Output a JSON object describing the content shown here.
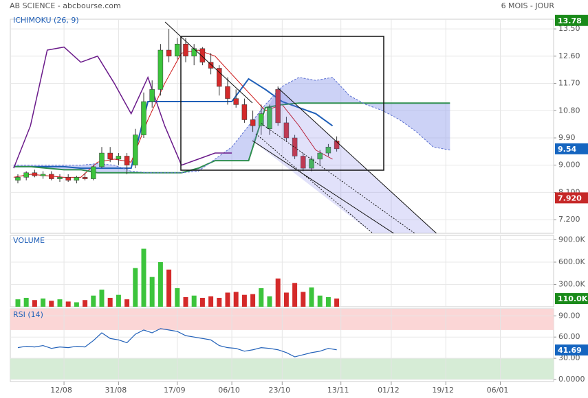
{
  "header": {
    "title": "AB SCIENCE - abcbourse.com",
    "period": "6 MOIS - JOUR"
  },
  "chart_data": [
    {
      "type": "candlestick",
      "title": "ICHIMOKU (26, 9)",
      "x": [
        1,
        3,
        5,
        7,
        9,
        11,
        13,
        15,
        17,
        19,
        21,
        23,
        25,
        27,
        29,
        31,
        33,
        35,
        37,
        39,
        41,
        43,
        45,
        47,
        49,
        51,
        53,
        55,
        57,
        59,
        61,
        63,
        65,
        67,
        69,
        71,
        73,
        75,
        77
      ],
      "open": [
        8.5,
        8.6,
        8.75,
        8.65,
        8.7,
        8.55,
        8.6,
        8.5,
        8.6,
        8.55,
        8.95,
        9.4,
        9.2,
        9.3,
        9.0,
        10.0,
        11.1,
        11.5,
        12.8,
        12.6,
        13.0,
        12.6,
        12.85,
        12.4,
        12.2,
        11.6,
        11.2,
        11.0,
        10.5,
        10.3,
        10.2,
        11.5,
        10.4,
        9.9,
        9.3,
        8.9,
        9.2,
        9.4,
        9.8
      ],
      "high": [
        8.7,
        8.8,
        8.85,
        8.8,
        8.8,
        8.7,
        8.7,
        8.65,
        8.75,
        9.0,
        9.6,
        9.6,
        9.4,
        9.4,
        10.2,
        11.4,
        11.8,
        13.0,
        13.5,
        13.2,
        13.2,
        13.0,
        12.9,
        12.7,
        12.3,
        11.9,
        11.5,
        11.2,
        10.8,
        11.0,
        11.0,
        11.6,
        10.6,
        10.0,
        9.4,
        9.3,
        9.5,
        9.7,
        9.95
      ],
      "low": [
        8.4,
        8.5,
        8.6,
        8.55,
        8.5,
        8.45,
        8.45,
        8.4,
        8.5,
        8.5,
        8.9,
        9.1,
        9.0,
        8.7,
        8.9,
        9.9,
        10.9,
        11.3,
        12.4,
        12.5,
        12.4,
        12.3,
        12.3,
        12.0,
        11.3,
        11.0,
        10.9,
        10.4,
        10.1,
        10.0,
        10.0,
        10.3,
        9.8,
        9.2,
        8.8,
        8.8,
        9.0,
        9.3,
        9.45
      ],
      "close": [
        8.6,
        8.75,
        8.65,
        8.7,
        8.55,
        8.6,
        8.5,
        8.6,
        8.55,
        8.95,
        9.4,
        9.2,
        9.3,
        9.0,
        10.0,
        11.1,
        11.5,
        12.8,
        12.6,
        13.0,
        12.6,
        12.85,
        12.4,
        12.2,
        11.6,
        11.2,
        11.0,
        10.5,
        10.3,
        10.7,
        10.9,
        10.4,
        9.9,
        9.3,
        8.9,
        9.2,
        9.4,
        9.6,
        9.54
      ],
      "up_color": "#3cc43c",
      "down_color": "#d42a2a",
      "overlays": [
        {
          "color": "#cc1111",
          "width": 1,
          "x": [
            0,
            4,
            8,
            12,
            16,
            20,
            24,
            28,
            32,
            36,
            40,
            44,
            48,
            52,
            56,
            60,
            64,
            68,
            72,
            76
          ],
          "values": [
            8.6,
            8.7,
            8.65,
            8.6,
            8.6,
            9.1,
            9.2,
            9.1,
            10.5,
            11.7,
            12.7,
            12.8,
            12.6,
            12.0,
            11.4,
            10.8,
            11.0,
            10.3,
            9.5,
            9.2
          ]
        },
        {
          "color": "#1f5fb8",
          "width": 2,
          "x": [
            0,
            4,
            8,
            12,
            16,
            20,
            24,
            28,
            32,
            36,
            40,
            44,
            48,
            52,
            56,
            60,
            64,
            68,
            72,
            76
          ],
          "values": [
            8.95,
            8.95,
            8.95,
            8.95,
            8.9,
            8.9,
            8.9,
            8.9,
            11.1,
            11.1,
            11.1,
            11.1,
            11.1,
            11.1,
            11.85,
            11.5,
            11.1,
            10.9,
            10.7,
            10.3
          ]
        },
        {
          "color": "#2f8f4f",
          "width": 2,
          "x": [
            0,
            4,
            8,
            12,
            16,
            20,
            24,
            28,
            32,
            36,
            40,
            44,
            48,
            52,
            56,
            60,
            64,
            68,
            72,
            76,
            80,
            84,
            88,
            92,
            96,
            100,
            104
          ],
          "values": [
            8.95,
            8.95,
            8.9,
            8.85,
            8.85,
            8.75,
            8.75,
            8.75,
            8.75,
            8.75,
            8.75,
            8.9,
            9.15,
            9.15,
            9.15,
            10.9,
            11.0,
            11.05,
            11.05,
            11.05,
            11.05,
            11.05,
            11.05,
            11.05,
            11.05,
            11.05,
            11.05
          ]
        },
        {
          "color": "#5a6fd0",
          "width": 1,
          "dash": true,
          "x": [
            0,
            4,
            8,
            12,
            16,
            20,
            24,
            28,
            32,
            36,
            40,
            44,
            48,
            52,
            56,
            60,
            64,
            68,
            72,
            76,
            80,
            84,
            88,
            92,
            96,
            100,
            104
          ],
          "values": [
            9.0,
            9.0,
            9.0,
            9.0,
            9.0,
            9.05,
            9.0,
            8.8,
            8.75,
            8.75,
            8.75,
            8.8,
            9.2,
            9.6,
            10.3,
            11.0,
            11.6,
            11.9,
            11.8,
            11.9,
            11.3,
            11.0,
            10.8,
            10.5,
            10.1,
            9.6,
            9.5
          ]
        },
        {
          "color": "#6a1a8a",
          "width": 1.5,
          "x": [
            0,
            4,
            8,
            12,
            16,
            20,
            24,
            28,
            32,
            36,
            40,
            44,
            48,
            52
          ],
          "values": [
            8.9,
            10.3,
            12.8,
            12.9,
            12.4,
            12.6,
            11.7,
            10.7,
            11.9,
            10.3,
            9.0,
            9.2,
            9.4,
            9.4
          ]
        }
      ],
      "cloud": {
        "between": [
          2,
          3
        ],
        "color": "#9aa6ee"
      },
      "xlim": [
        -0.8,
        128.7
      ],
      "ylim": [
        6.75,
        13.82
      ],
      "yticks": [
        {
          "value": 7.2,
          "label": "7.200"
        },
        {
          "value": 8.1,
          "label": "8.100"
        },
        {
          "value": 9.0,
          "label": "9.000"
        },
        {
          "value": 9.9,
          "label": "9.90"
        },
        {
          "value": 10.8,
          "label": "10.80"
        },
        {
          "value": 11.7,
          "label": "11.70"
        },
        {
          "value": 12.6,
          "label": "12.60"
        },
        {
          "value": 13.5,
          "label": "13.50"
        }
      ],
      "markers": [
        {
          "value": 13.78,
          "label": "13.78",
          "color": "#1a8a1a"
        },
        {
          "value": 9.54,
          "label": "9.54",
          "color": "#1565c0"
        },
        {
          "value": 7.92,
          "label": "7.920",
          "color": "#c62828"
        }
      ]
    },
    {
      "type": "bar",
      "title": "VOLUME",
      "x": [
        1,
        3,
        5,
        7,
        9,
        11,
        13,
        15,
        17,
        19,
        21,
        23,
        25,
        27,
        29,
        31,
        33,
        35,
        37,
        39,
        41,
        43,
        45,
        47,
        49,
        51,
        53,
        55,
        57,
        59,
        61,
        63,
        65,
        67,
        69,
        71,
        73,
        75,
        77
      ],
      "values": [
        100000,
        120000,
        90000,
        110000,
        80000,
        100000,
        70000,
        60000,
        90000,
        150000,
        230000,
        120000,
        160000,
        100000,
        520000,
        780000,
        400000,
        600000,
        500000,
        250000,
        130000,
        150000,
        120000,
        140000,
        120000,
        190000,
        200000,
        160000,
        170000,
        250000,
        140000,
        380000,
        190000,
        320000,
        200000,
        260000,
        150000,
        130000,
        110000
      ],
      "xlim": [
        -0.8,
        128.7
      ],
      "ylim": [
        0,
        960000
      ],
      "yticks": [
        {
          "value": 300000,
          "label": "300.0K"
        },
        {
          "value": 600000,
          "label": "600.0K"
        },
        {
          "value": 900000,
          "label": "900.0K"
        }
      ],
      "markers": [
        {
          "value": 110000,
          "label": "110.0K",
          "color": "#1a8a1a"
        }
      ]
    },
    {
      "type": "line",
      "title": "RSI (14)",
      "x": [
        1,
        3,
        5,
        7,
        9,
        11,
        13,
        15,
        17,
        19,
        21,
        23,
        25,
        27,
        29,
        31,
        33,
        35,
        37,
        39,
        41,
        43,
        45,
        47,
        49,
        51,
        53,
        55,
        57,
        59,
        61,
        63,
        65,
        67,
        69,
        71,
        73,
        75,
        77
      ],
      "values": [
        45,
        47,
        46,
        48,
        44,
        46,
        45,
        47,
        46,
        55,
        66,
        58,
        56,
        52,
        64,
        70,
        66,
        72,
        70,
        68,
        62,
        60,
        58,
        56,
        48,
        45,
        44,
        40,
        42,
        45,
        44,
        42,
        38,
        32,
        35,
        38,
        40,
        44,
        42
      ],
      "color": "#1f5fb8",
      "bands": [
        {
          "from": 70,
          "to": 100,
          "color": "#fbd6d6"
        },
        {
          "from": 0,
          "to": 30,
          "color": "#d6ecd6"
        }
      ],
      "xlim": [
        -0.8,
        128.7
      ],
      "ylim": [
        0,
        100
      ],
      "yticks": [
        {
          "value": 0,
          "label": "0.0000"
        },
        {
          "value": 30,
          "label": "30.00"
        },
        {
          "value": 60,
          "label": "60.00"
        },
        {
          "value": 90,
          "label": "90.00"
        }
      ],
      "xticks": [
        {
          "value": 12,
          "label": "12/08"
        },
        {
          "value": 25,
          "label": "31/08"
        },
        {
          "value": 39,
          "label": "17/09"
        },
        {
          "value": 52,
          "label": "06/10"
        },
        {
          "value": 64,
          "label": "23/10"
        },
        {
          "value": 78,
          "label": "13/11"
        },
        {
          "value": 90,
          "label": "01/12"
        },
        {
          "value": 103,
          "label": "19/12"
        },
        {
          "value": 116,
          "label": "06/01"
        }
      ],
      "markers": [
        {
          "value": 41.69,
          "label": "41.69",
          "color": "#1565c0"
        }
      ]
    }
  ]
}
